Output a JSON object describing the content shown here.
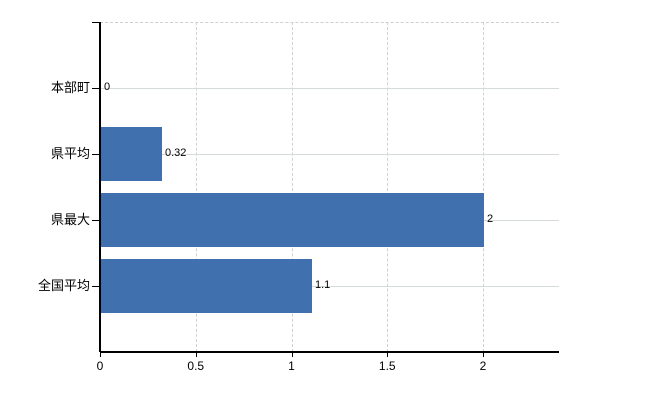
{
  "chart_data": {
    "type": "bar",
    "orientation": "horizontal",
    "title": "",
    "xlabel": "",
    "ylabel": "",
    "categories": [
      "本部町",
      "県平均",
      "県最大",
      "全国平均"
    ],
    "values": [
      0,
      0.32,
      2,
      1.1
    ],
    "value_labels": [
      "0",
      "0.32",
      "2",
      "1.1"
    ],
    "x_ticks": [
      0,
      0.5,
      1,
      1.5,
      2
    ],
    "x_tick_labels": [
      "0",
      "0.5",
      "1",
      "1.5",
      "2"
    ],
    "xlim": [
      0,
      2.4
    ],
    "grid": true,
    "legend": false,
    "colors": {
      "bar": "#4170af",
      "axis": "#000000",
      "horizontal_grid": "#d5dbd5",
      "vertical_grid": "#d0d0d0",
      "text": "#000000"
    }
  }
}
